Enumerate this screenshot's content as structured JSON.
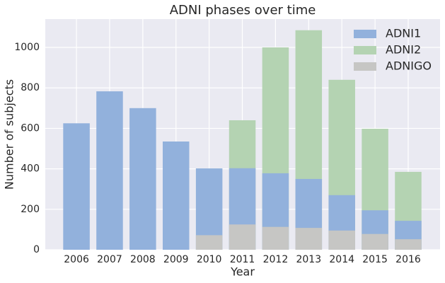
{
  "chart_data": {
    "type": "bar",
    "title": "ADNI phases over time",
    "x_label": "Year",
    "y_label": "Number of subjects",
    "x": [
      2006,
      2007,
      2008,
      2009,
      2010,
      2011,
      2012,
      2013,
      2014,
      2015,
      2016
    ],
    "xlim": [
      2005.06,
      2016.96
    ],
    "series": [
      {
        "name": "ADNI1",
        "color": "#92b1dc",
        "values": [
          625,
          783,
          700,
          535,
          402,
          403,
          378,
          350,
          270,
          195,
          143
        ]
      },
      {
        "name": "ADNI2",
        "color": "#b4d3b2",
        "values": [
          null,
          null,
          null,
          null,
          null,
          640,
          1000,
          1085,
          840,
          598,
          385
        ]
      },
      {
        "name": "ADNIGO",
        "color": "#c6c6c4",
        "values": [
          null,
          null,
          null,
          null,
          72,
          125,
          113,
          108,
          95,
          78,
          52
        ]
      }
    ],
    "draw_order": [
      1,
      0,
      2
    ],
    "ylim": [
      0,
      1140
    ],
    "yticks": [
      0,
      200,
      400,
      600,
      800,
      1000
    ],
    "grid": true,
    "legend": "upper-right"
  }
}
